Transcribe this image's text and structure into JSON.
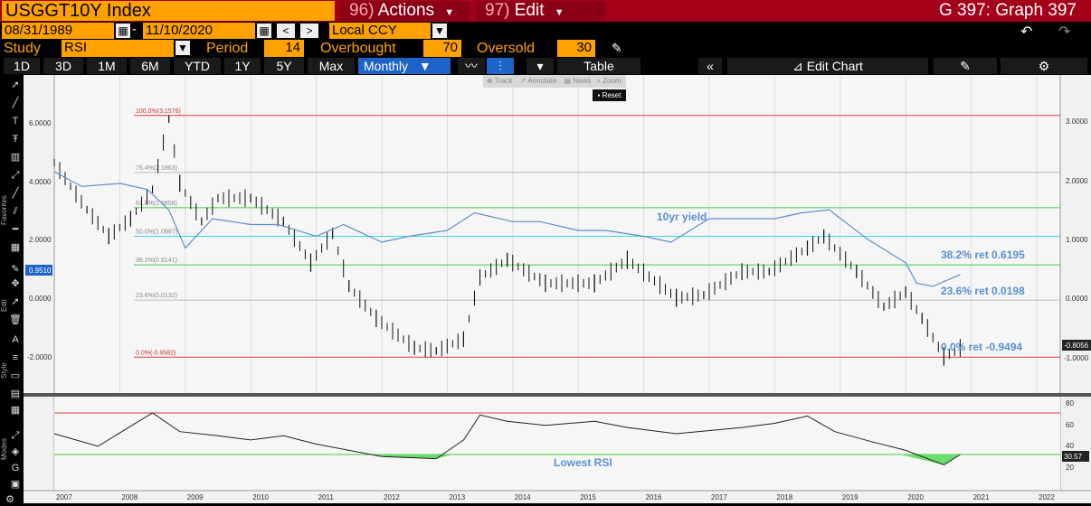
{
  "header": {
    "ticker": "USGGT10Y Index",
    "actions_num": "96)",
    "actions_label": "Actions",
    "edit_num": "97)",
    "edit_label": "Edit",
    "graph_title": "G 397: Graph 397"
  },
  "dates": {
    "start": "08/31/1989",
    "sep": "-",
    "end": "11/10/2020",
    "prev": "<",
    "next": ">",
    "currency": "Local CCY"
  },
  "study": {
    "label": "Study",
    "value": "RSI",
    "period_label": "Period",
    "period": "14",
    "overbought_label": "Overbought",
    "overbought": "70",
    "oversold_label": "Oversold",
    "oversold": "30"
  },
  "ranges": [
    "1D",
    "3D",
    "1M",
    "6M",
    "YTD",
    "1Y",
    "5Y",
    "Max"
  ],
  "freq": "Monthly",
  "table_label": "Table",
  "editchart_label": "Edit Chart",
  "popup": {
    "track": "Track",
    "annotate": "Annotate",
    "news": "News",
    "zoom": "Zoom",
    "reset": "Reset"
  },
  "left_axis": [
    "6.0000",
    "4.0000",
    "2.0000",
    "0.0000",
    "-2.0000"
  ],
  "right_axis": [
    "3.0000",
    "2.0000",
    "1.0000",
    "0.0000",
    "-1.0000"
  ],
  "left_marker": "0.9510",
  "right_marker": "-0.8056",
  "rsi_axis": [
    "80",
    "60",
    "40",
    "20"
  ],
  "rsi_marker": "30.57",
  "fib": [
    "100.0%(3.1576)",
    "76.4%(2.1863)",
    "61.8%(1.5858)",
    "50.0%(1.0997)",
    "38.2%(0.6141)",
    "23.6%(0.0132)",
    "0.0%(-0.9582)"
  ],
  "annotations": {
    "yield": "10yr yield",
    "r382": "38.2% ret 0.6195",
    "r236": "23.6% ret 0.0198",
    "r0": "0.0% ret -0.9494",
    "lowest": "Lowest RSI"
  },
  "years": [
    "2007",
    "2008",
    "2009",
    "2010",
    "2011",
    "2012",
    "2013",
    "2014",
    "2015",
    "2016",
    "2017",
    "2018",
    "2019",
    "2020",
    "2021",
    "2022"
  ],
  "side_tabs": {
    "favorites": "Favorites",
    "edit": "Edit",
    "style": "Style",
    "modes": "Modes"
  },
  "colors": {
    "accent": "#ffa200",
    "header": "#a5001a",
    "active": "#1e64c8",
    "yield": "#5b8fd0",
    "fib100": "#e23a3a",
    "fib618": "#3fd13f",
    "fib50": "#3fd1e8",
    "rsi_low": "#6cdc6c"
  },
  "chart_data": {
    "type": "line",
    "series": [
      {
        "name": "10yr yield",
        "x": [
          "2007-01",
          "2007-06",
          "2008-01",
          "2008-06",
          "2008-10",
          "2009-01",
          "2009-06",
          "2010-01",
          "2010-06",
          "2011-01",
          "2011-06",
          "2012-01",
          "2012-06",
          "2013-01",
          "2013-06",
          "2014-01",
          "2014-06",
          "2015-01",
          "2015-06",
          "2016-01",
          "2016-06",
          "2017-01",
          "2017-06",
          "2018-01",
          "2018-06",
          "2018-11",
          "2019-06",
          "2020-01",
          "2020-03",
          "2020-06",
          "2020-11"
        ],
        "y": [
          2.2,
          1.95,
          2.0,
          1.9,
          1.55,
          0.9,
          1.4,
          1.3,
          1.3,
          1.1,
          1.3,
          1.0,
          1.1,
          1.2,
          1.5,
          1.35,
          1.35,
          1.2,
          1.2,
          1.1,
          1.0,
          1.4,
          1.4,
          1.4,
          1.5,
          1.55,
          1.05,
          0.65,
          0.3,
          0.25,
          0.45
        ]
      }
    ],
    "rsi": {
      "period": 14,
      "overbought": 70,
      "oversold": 30,
      "current": 30.57
    },
    "fibonacci": {
      "100.0%": 3.1576,
      "76.4%": 2.1863,
      "61.8%": 1.5858,
      "50.0%": 1.0997,
      "38.2%": 0.6141,
      "23.6%": 0.0132,
      "0.0%": -0.9582
    },
    "ylim": [
      -1.3,
      3.3
    ]
  }
}
